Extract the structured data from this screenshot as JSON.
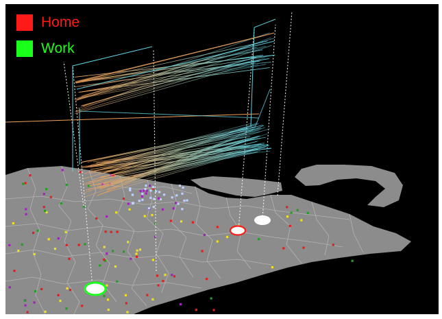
{
  "legend": {
    "items": [
      {
        "key": "home",
        "label": "Home",
        "color": "#ff1a1a"
      },
      {
        "key": "work",
        "label": "Work",
        "color": "#19ff19"
      }
    ]
  },
  "map": {
    "background": "#000000",
    "land_color": "#8c8c8c",
    "border_color": "#b4b4b4",
    "flow_colors": {
      "near": "#f2a35a",
      "far": "#5fd0e0"
    },
    "point_colors": {
      "yellow": "#f0e020",
      "red": "#e02020",
      "green": "#20a020",
      "purple": "#a020c0",
      "light_blue": "#c0d0ff"
    },
    "highlight_markers": [
      {
        "name": "home",
        "fill": "#ffffff",
        "stroke": "#ff1a1a"
      },
      {
        "name": "work",
        "fill": "#ffffff",
        "stroke": "#19ff19"
      },
      {
        "name": "destination",
        "fill": "#ffffff",
        "stroke": "#ffffff"
      }
    ]
  }
}
